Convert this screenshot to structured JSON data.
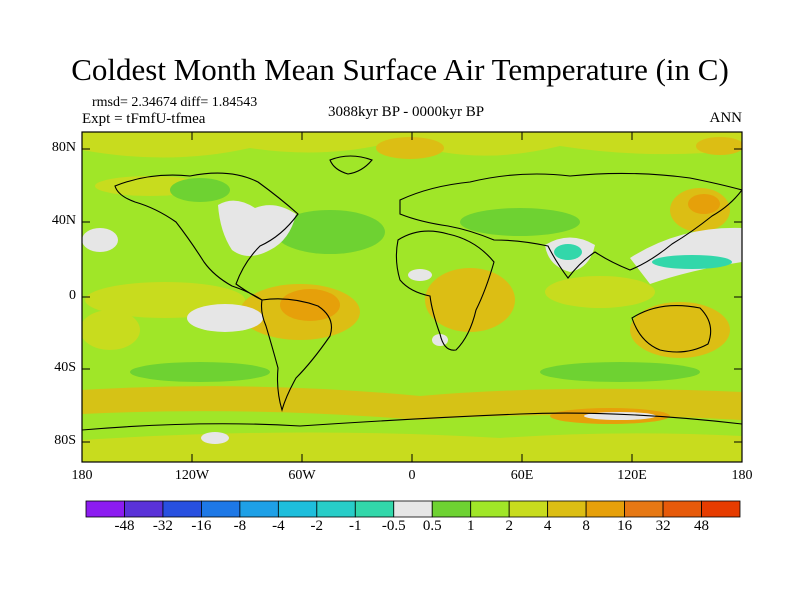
{
  "title": "Coldest Month Mean Surface Air Temperature (in C)",
  "stats_line": "rmsd= 2.34674 diff= 1.84543",
  "experiment_line": "Expt = tFmfU-tfmea",
  "period": "3088kyr BP - 0000kyr BP",
  "season": "ANN",
  "map": {
    "projection": "cylindrical equidistant",
    "lon_range": [
      -180,
      180
    ],
    "lat_range": [
      -90,
      90
    ],
    "lat_tick_labels": [
      "80N",
      "40N",
      "0",
      "40S",
      "80S"
    ],
    "lon_tick_labels": [
      "180",
      "120W",
      "60W",
      "0",
      "60E",
      "120E",
      "180"
    ]
  },
  "colorbar": {
    "labels": [
      "-48",
      "-32",
      "-16",
      "-8",
      "-4",
      "-2",
      "-1",
      "-0.5",
      "0.5",
      "1",
      "2",
      "4",
      "8",
      "16",
      "32",
      "48"
    ],
    "colors": [
      "#8c1cf0",
      "#5a32d8",
      "#2850e0",
      "#1e78e6",
      "#1ea0e6",
      "#1ebedc",
      "#28cdc8",
      "#32d7aa",
      "#e6e6e6",
      "#6ed232",
      "#a0e628",
      "#c8dc1e",
      "#dcbe14",
      "#e6a00a",
      "#e67814",
      "#e65a0a",
      "#e63c00"
    ]
  }
}
